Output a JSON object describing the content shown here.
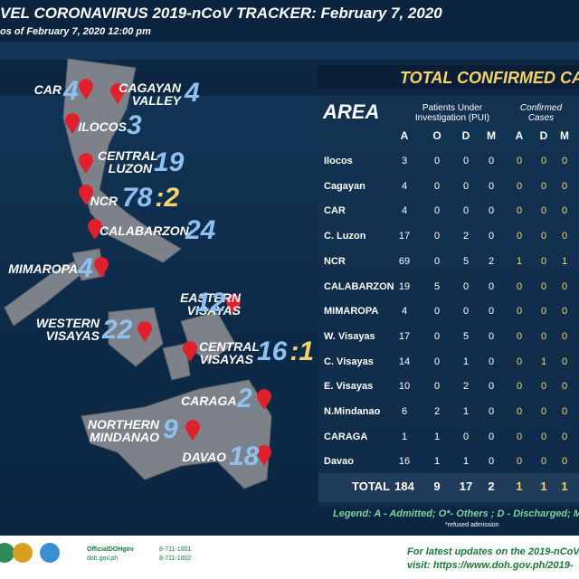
{
  "header": {
    "title": "VEL CORONAVIRUS 2019-nCoV TRACKER:",
    "date": "February 7, 2020",
    "subtitle": "os of February 7, 2020 12:00 pm"
  },
  "map_labels": [
    {
      "name": "CAR",
      "count": 4
    },
    {
      "name": "CAGAYAN VALLEY",
      "count": 4
    },
    {
      "name": "ILOCOS",
      "count": 3
    },
    {
      "name": "CENTRAL LUZON",
      "count": 19
    },
    {
      "name": "NCR",
      "count": 78,
      "confirmed": ":2"
    },
    {
      "name": "CALABARZON",
      "count": 24
    },
    {
      "name": "MIMAROPA",
      "count": 4
    },
    {
      "name": "EASTERN VISAYAS",
      "count": 12
    },
    {
      "name": "WESTERN VISAYAS",
      "count": 22
    },
    {
      "name": "CENTRAL VISAYAS",
      "count": 16,
      "confirmed": ":1"
    },
    {
      "name": "CARAGA",
      "count": 2
    },
    {
      "name": "NORTHERN MINDANAO",
      "count": 9
    },
    {
      "name": "DAVAO",
      "count": 18
    }
  ],
  "table": {
    "title": "TOTAL CONFIRMED CASES:",
    "area_header": "AREA",
    "pui_header": "Patients Under Investigation (PUI)",
    "confirmed_header": "Confirmed Cases",
    "columns": [
      "A",
      "O",
      "D",
      "M",
      "A",
      "D",
      "M"
    ],
    "rows": [
      [
        "Ilocos",
        3,
        0,
        0,
        0,
        0,
        0,
        0
      ],
      [
        "Cagayan",
        4,
        0,
        0,
        0,
        0,
        0,
        0
      ],
      [
        "CAR",
        4,
        0,
        0,
        0,
        0,
        0,
        0
      ],
      [
        "C. Luzon",
        17,
        0,
        2,
        0,
        0,
        0,
        0
      ],
      [
        "NCR",
        69,
        0,
        5,
        2,
        1,
        0,
        1
      ],
      [
        "CALABARZON",
        19,
        5,
        0,
        0,
        0,
        0,
        0
      ],
      [
        "MIMAROPA",
        4,
        0,
        0,
        0,
        0,
        0,
        0
      ],
      [
        "W. Visayas",
        17,
        0,
        5,
        0,
        0,
        0,
        0
      ],
      [
        "C. Visayas",
        14,
        0,
        1,
        0,
        0,
        1,
        0
      ],
      [
        "E. Visayas",
        10,
        0,
        2,
        0,
        0,
        0,
        0
      ],
      [
        "N.Mindanao",
        6,
        2,
        1,
        0,
        0,
        0,
        0
      ],
      [
        "CARAGA",
        1,
        1,
        0,
        0,
        0,
        0,
        0
      ],
      [
        "Davao",
        16,
        1,
        1,
        0,
        0,
        0,
        0
      ]
    ],
    "total": [
      "TOTAL",
      184,
      9,
      17,
      2,
      1,
      1,
      1
    ],
    "legend": "Legend: A - Admitted; O*- Others ; D - Discharged; M - Mor",
    "legend_note": "*refused admission"
  },
  "footer": {
    "social": "OfficialDOHgov",
    "site": "doh.gov.ph",
    "phone1": "8-711-1001",
    "phone2": "8-711-1002",
    "update_line1": "For latest updates on the 2019-nCoV,",
    "update_line2": "visit: https://www.doh.gov.ph/2019-"
  }
}
